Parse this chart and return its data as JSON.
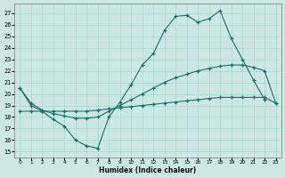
{
  "background_color": "#cce8e5",
  "grid_color": "#a8d4d0",
  "line_color": "#1a6e65",
  "xlabel": "Humidex (Indice chaleur)",
  "xticks": [
    0,
    1,
    2,
    3,
    4,
    5,
    6,
    7,
    8,
    9,
    10,
    11,
    12,
    13,
    14,
    15,
    16,
    17,
    18,
    19,
    20,
    21,
    22,
    23
  ],
  "yticks": [
    15,
    16,
    17,
    18,
    19,
    20,
    21,
    22,
    23,
    24,
    25,
    26,
    27
  ],
  "xlim": [
    -0.5,
    23.5
  ],
  "ylim": [
    14.5,
    27.8
  ],
  "line1_x": [
    0,
    1,
    2,
    3,
    4,
    5,
    6,
    7,
    8,
    9,
    10,
    11,
    12,
    13,
    14,
    15,
    16,
    17,
    18,
    19,
    20,
    21,
    22
  ],
  "line1_y": [
    20.5,
    19.0,
    18.5,
    17.8,
    17.2,
    16.0,
    15.5,
    15.3,
    18.0,
    19.3,
    20.8,
    22.5,
    23.5,
    25.5,
    26.7,
    26.8,
    26.2,
    26.5,
    27.2,
    24.8,
    23.0,
    21.2,
    19.5
  ],
  "line2_x": [
    0,
    1,
    2,
    3,
    4,
    5,
    6,
    7,
    8,
    9,
    10,
    11,
    12,
    13,
    14,
    15,
    16,
    17,
    18,
    19,
    20,
    21,
    22,
    23
  ],
  "line2_y": [
    20.5,
    19.2,
    18.6,
    18.3,
    18.1,
    17.9,
    17.9,
    18.0,
    18.5,
    19.0,
    19.5,
    20.0,
    20.5,
    21.0,
    21.4,
    21.7,
    22.0,
    22.2,
    22.4,
    22.5,
    22.5,
    22.3,
    22.0,
    19.2
  ],
  "line3_x": [
    0,
    1,
    2,
    3,
    4,
    5,
    6,
    7,
    8,
    9,
    10,
    11,
    12,
    13,
    14,
    15,
    16,
    17,
    18,
    19,
    20,
    21,
    22,
    23
  ],
  "line3_y": [
    18.5,
    18.5,
    18.5,
    18.5,
    18.5,
    18.5,
    18.5,
    18.6,
    18.7,
    18.8,
    18.9,
    19.0,
    19.1,
    19.2,
    19.3,
    19.4,
    19.5,
    19.6,
    19.7,
    19.7,
    19.7,
    19.7,
    19.7,
    19.2
  ]
}
